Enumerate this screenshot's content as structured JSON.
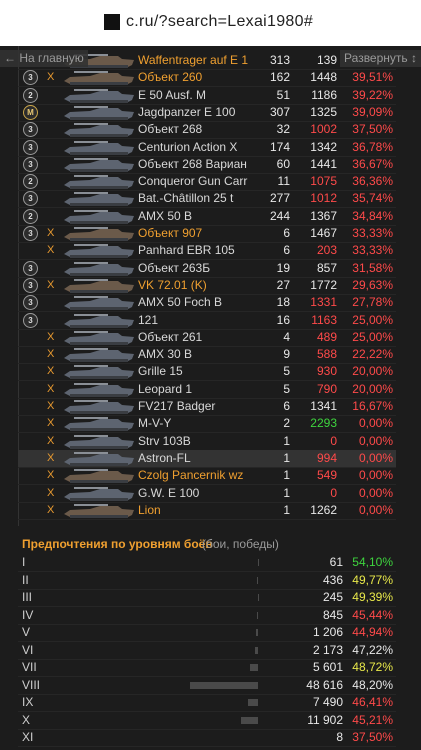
{
  "browser": {
    "url": "c.ru/?search=Lexai1980#"
  },
  "nav": {
    "back": "← На главную",
    "expand": "Развернуть ↕"
  },
  "tanks": [
    {
      "name": "Waffentrager auf E 1",
      "premium": true,
      "battles": "313",
      "damage": "139",
      "damage_color": "#e8e8e8"
    },
    {
      "badge": "3",
      "tier": "X",
      "name": "Объект 260",
      "premium": true,
      "battles": "162",
      "damage": "1448",
      "damage_color": "#e8e8e8",
      "winrate": "39,51%"
    },
    {
      "badge": "2",
      "name": "E 50 Ausf. M",
      "battles": "51",
      "damage": "1186",
      "damage_color": "#e8e8e8",
      "winrate": "39,22%"
    },
    {
      "badge": "M",
      "name": "Jagdpanzer E 100",
      "battles": "307",
      "damage": "1325",
      "damage_color": "#e8e8e8",
      "winrate": "39,09%"
    },
    {
      "badge": "3",
      "name": "Объект 268",
      "battles": "32",
      "damage": "1002",
      "damage_color": "#ff4a4a",
      "winrate": "37,50%"
    },
    {
      "badge": "3",
      "name": "Centurion Action X",
      "battles": "174",
      "damage": "1342",
      "damage_color": "#e8e8e8",
      "winrate": "36,78%"
    },
    {
      "badge": "3",
      "name": "Объект 268 Вариан",
      "battles": "60",
      "damage": "1441",
      "damage_color": "#e8e8e8",
      "winrate": "36,67%"
    },
    {
      "badge": "2",
      "name": "Conqueror Gun Carr",
      "battles": "11",
      "damage": "1075",
      "damage_color": "#ff4a4a",
      "winrate": "36,36%"
    },
    {
      "badge": "3",
      "name": "Bat.-Châtillon 25 t",
      "battles": "277",
      "damage": "1012",
      "damage_color": "#ff4a4a",
      "winrate": "35,74%"
    },
    {
      "badge": "2",
      "name": "AMX 50 B",
      "battles": "244",
      "damage": "1367",
      "damage_color": "#e8e8e8",
      "winrate": "34,84%"
    },
    {
      "badge": "3",
      "tier": "X",
      "name": "Объект 907",
      "premium": true,
      "battles": "6",
      "damage": "1467",
      "damage_color": "#e8e8e8",
      "winrate": "33,33%"
    },
    {
      "tier": "X",
      "name": "Panhard EBR 105",
      "battles": "6",
      "damage": "203",
      "damage_color": "#ff4a4a",
      "winrate": "33,33%"
    },
    {
      "badge": "3",
      "name": "Объект 263Б",
      "battles": "19",
      "damage": "857",
      "damage_color": "#e8e8e8",
      "winrate": "31,58%"
    },
    {
      "badge": "3",
      "tier": "X",
      "name": "VK 72.01 (K)",
      "premium": true,
      "battles": "27",
      "damage": "1772",
      "damage_color": "#e8e8e8",
      "winrate": "29,63%"
    },
    {
      "badge": "3",
      "name": "AMX 50 Foch B",
      "battles": "18",
      "damage": "1331",
      "damage_color": "#ff4a4a",
      "winrate": "27,78%"
    },
    {
      "badge": "3",
      "name": "121",
      "battles": "16",
      "damage": "1163",
      "damage_color": "#ff4a4a",
      "winrate": "25,00%"
    },
    {
      "tier": "X",
      "name": "Объект 261",
      "battles": "4",
      "damage": "489",
      "damage_color": "#ff4a4a",
      "winrate": "25,00%"
    },
    {
      "tier": "X",
      "name": "AMX 30 B",
      "battles": "9",
      "damage": "588",
      "damage_color": "#ff4a4a",
      "winrate": "22,22%"
    },
    {
      "tier": "X",
      "name": "Grille 15",
      "battles": "5",
      "damage": "930",
      "damage_color": "#ff4a4a",
      "winrate": "20,00%"
    },
    {
      "tier": "X",
      "name": "Leopard 1",
      "battles": "5",
      "damage": "790",
      "damage_color": "#ff4a4a",
      "winrate": "20,00%"
    },
    {
      "tier": "X",
      "name": "FV217 Badger",
      "battles": "6",
      "damage": "1341",
      "damage_color": "#e8e8e8",
      "winrate": "16,67%"
    },
    {
      "tier": "X",
      "name": "M-V-Y",
      "battles": "2",
      "damage": "2293",
      "damage_color": "#3ed43e",
      "winrate": "0,00%"
    },
    {
      "tier": "X",
      "name": "Strv 103B",
      "battles": "1",
      "damage": "0",
      "damage_color": "#ff4a4a",
      "winrate": "0,00%"
    },
    {
      "tier": "X",
      "name": "Astron-FL",
      "battles": "1",
      "damage": "994",
      "damage_color": "#ff4a4a",
      "winrate": "0,00%"
    },
    {
      "tier": "X",
      "name": "Czolg Pancernik wz",
      "premium": true,
      "battles": "1",
      "damage": "549",
      "damage_color": "#ff4a4a",
      "winrate": "0,00%"
    },
    {
      "tier": "X",
      "name": "G.W. E 100",
      "battles": "1",
      "damage": "0",
      "damage_color": "#ff4a4a",
      "winrate": "0,00%"
    },
    {
      "tier": "X",
      "name": "Lion",
      "premium": true,
      "battles": "1",
      "damage": "1262",
      "damage_color": "#e8e8e8",
      "winrate": "0,00%"
    }
  ],
  "levels": {
    "title": "Предпочтения по уровням боёв",
    "subtitle": "(бои, победы)",
    "rows": [
      {
        "level": "I",
        "battles": {
          "value": 61,
          "label": "61"
        },
        "winrate": "54,10%",
        "winrate_color": "#3ed43e"
      },
      {
        "level": "II",
        "battles": {
          "value": 436,
          "label": "436"
        },
        "winrate": "49,77%",
        "winrate_color": "#e8e84a"
      },
      {
        "level": "III",
        "battles": {
          "value": 245,
          "label": "245"
        },
        "winrate": "49,39%",
        "winrate_color": "#e8e84a"
      },
      {
        "level": "IV",
        "battles": {
          "value": 845,
          "label": "845"
        },
        "winrate": "45,44%",
        "winrate_color": "#ff4a4a"
      },
      {
        "level": "V",
        "battles": {
          "value": 1206,
          "label": "1 206"
        },
        "winrate": "44,94%",
        "winrate_color": "#ff4a4a"
      },
      {
        "level": "VI",
        "battles": {
          "value": 2173,
          "label": "2 173"
        },
        "winrate": "47,22%",
        "winrate_color": "#e8e8e8"
      },
      {
        "level": "VII",
        "battles": {
          "value": 5601,
          "label": "5 601"
        },
        "winrate": "48,72%",
        "winrate_color": "#e8e84a"
      },
      {
        "level": "VIII",
        "battles": {
          "value": 48616,
          "label": "48 616"
        },
        "winrate": "48,20%",
        "winrate_color": "#e8e8e8"
      },
      {
        "level": "IX",
        "battles": {
          "value": 7490,
          "label": "7 490"
        },
        "winrate": "46,41%",
        "winrate_color": "#ff4a4a"
      },
      {
        "level": "X",
        "battles": {
          "value": 11902,
          "label": "11 902"
        },
        "winrate": "45,21%",
        "winrate_color": "#ff4a4a"
      },
      {
        "level": "XI",
        "battles": {
          "value": 8,
          "label": "8"
        },
        "winrate": "37,50%",
        "winrate_color": "#ff4a4a"
      }
    ]
  }
}
